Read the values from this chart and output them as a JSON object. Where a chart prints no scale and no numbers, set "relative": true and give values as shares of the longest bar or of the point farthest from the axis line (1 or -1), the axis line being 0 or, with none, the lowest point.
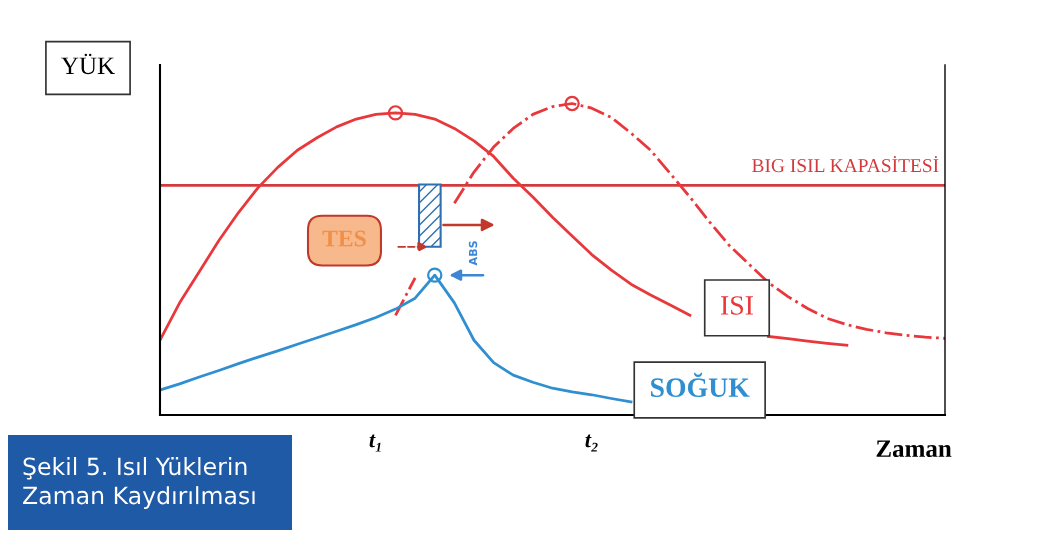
{
  "chart_data": {
    "type": "line",
    "relative": true,
    "ylabel": "YÜK",
    "xlabel": "Zaman",
    "tick_labels": "x",
    "grid": false,
    "categories": [
      null,
      null,
      null,
      null,
      null,
      null,
      null,
      null,
      null,
      null,
      null,
      "t₁",
      null,
      null,
      null,
      null,
      null,
      null,
      null,
      null,
      null,
      null,
      "t₂",
      null,
      null,
      null,
      null,
      null,
      null,
      null,
      null,
      null,
      null,
      null,
      null,
      null,
      null,
      null,
      null,
      null,
      null
    ],
    "series": [
      {
        "name": "ISI",
        "color": "#e8383b",
        "line_style": "solid",
        "values": [
          0.24,
          0.36,
          0.46,
          0.56,
          0.65,
          0.73,
          0.795,
          0.85,
          0.89,
          0.925,
          0.95,
          0.965,
          0.97,
          0.965,
          0.95,
          0.92,
          0.88,
          0.83,
          0.76,
          0.7,
          0.635,
          0.575,
          0.515,
          0.465,
          0.42,
          0.385,
          0.353,
          0.32,
          null,
          null,
          null,
          0.252,
          0.245,
          0.237,
          0.23,
          0.224,
          null,
          null,
          null,
          null,
          null
        ]
      },
      {
        "color": "#e8383b",
        "line_style": "dashdot",
        "values": [
          null,
          null,
          null,
          null,
          null,
          null,
          null,
          null,
          null,
          null,
          null,
          null,
          0.32,
          0.44,
          null,
          0.68,
          0.78,
          0.86,
          0.92,
          0.965,
          0.99,
          1,
          0.985,
          0.955,
          0.905,
          0.85,
          0.775,
          0.7,
          0.62,
          0.545,
          0.485,
          0.425,
          0.38,
          0.342,
          0.31,
          0.29,
          0.275,
          0.264,
          0.256,
          0.25,
          0.246
        ]
      },
      {
        "name": "SOĞUK",
        "color": "#2f8fd1",
        "line_style": "solid",
        "values": [
          0.08,
          0.1,
          0.122,
          0.143,
          0.165,
          0.186,
          0.206,
          0.227,
          0.248,
          0.269,
          0.29,
          0.313,
          0.34,
          0.375,
          0.449,
          0.36,
          0.24,
          0.168,
          0.128,
          0.105,
          0.086,
          0.074,
          0.065,
          0.053,
          0.042,
          null,
          null,
          null,
          null,
          null,
          null,
          null,
          null,
          null,
          null,
          null,
          null,
          null,
          null,
          null,
          null
        ]
      },
      {
        "type": "scatter",
        "marker": "circle",
        "values": [
          null,
          null,
          null,
          null,
          null,
          null,
          null,
          null,
          null,
          null,
          null,
          null,
          0.97,
          null,
          0.449,
          null,
          null,
          null,
          null,
          null,
          null,
          1,
          null,
          null,
          null,
          null,
          null,
          null,
          null,
          null,
          null,
          null,
          null,
          null,
          null,
          null,
          null,
          null,
          null,
          null,
          null
        ],
        "colors": [
          null,
          null,
          null,
          null,
          null,
          null,
          null,
          null,
          null,
          null,
          null,
          null,
          "#e8383b",
          null,
          "#2f8fd1",
          null,
          null,
          null,
          null,
          null,
          null,
          "#e8383b",
          null,
          null,
          null,
          null,
          null,
          null,
          null,
          null,
          null,
          null,
          null,
          null,
          null,
          null,
          null,
          null,
          null,
          null,
          null
        ]
      }
    ],
    "ref_lines": [
      {
        "axis": "y",
        "value": 0.737,
        "label": "BIG ISIL KAPASİTESİ",
        "color": "#d33a3d"
      }
    ],
    "annotations": [
      "TES",
      "ABS",
      "Şekil 5. Isıl Yüklerin Zaman Kaydırılması"
    ]
  }
}
